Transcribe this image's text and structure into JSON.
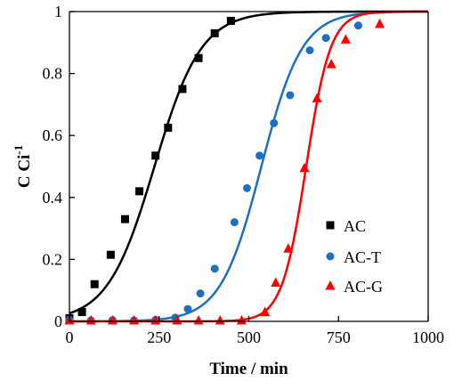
{
  "chart_data": {
    "type": "scatter",
    "xlabel": "Time / min",
    "ylabel": "C Ci",
    "ylabel_superscript": "-1",
    "xlim": [
      0,
      1000
    ],
    "ylim": [
      0,
      1
    ],
    "xticks": [
      0,
      250,
      500,
      750,
      1000
    ],
    "yticks": [
      0,
      0.2,
      0.4,
      0.6,
      0.8,
      1
    ],
    "ytick_labels": [
      "0",
      "0.2",
      "0.4",
      "0.6",
      "0.8",
      "1"
    ],
    "grid": false,
    "legend_position": "right",
    "series": [
      {
        "name": "AC",
        "marker": "square",
        "color": "#000000",
        "points": [
          [
            0,
            0.01
          ],
          [
            35,
            0.03
          ],
          [
            70,
            0.12
          ],
          [
            115,
            0.215
          ],
          [
            155,
            0.33
          ],
          [
            195,
            0.42
          ],
          [
            240,
            0.535
          ],
          [
            275,
            0.625
          ],
          [
            315,
            0.75
          ],
          [
            360,
            0.85
          ],
          [
            405,
            0.93
          ],
          [
            450,
            0.97
          ]
        ],
        "fit": {
          "t50": 237,
          "k": 0.0153
        }
      },
      {
        "name": "AC-T",
        "marker": "circle",
        "color": "#1f6fc0",
        "points": [
          [
            0,
            0.005
          ],
          [
            60,
            0.003
          ],
          [
            120,
            0.004
          ],
          [
            180,
            0.003
          ],
          [
            240,
            0.005
          ],
          [
            295,
            0.012
          ],
          [
            330,
            0.04
          ],
          [
            365,
            0.09
          ],
          [
            405,
            0.17
          ],
          [
            460,
            0.32
          ],
          [
            495,
            0.43
          ],
          [
            530,
            0.535
          ],
          [
            570,
            0.64
          ],
          [
            615,
            0.73
          ],
          [
            670,
            0.875
          ],
          [
            715,
            0.915
          ],
          [
            805,
            0.955
          ]
        ],
        "fit": {
          "t50": 535,
          "k": 0.0176
        }
      },
      {
        "name": "AC-G",
        "marker": "triangle",
        "color": "#ff0000",
        "points": [
          [
            0,
            0.003
          ],
          [
            60,
            0.003
          ],
          [
            120,
            0.003
          ],
          [
            180,
            0.003
          ],
          [
            240,
            0.003
          ],
          [
            300,
            0.003
          ],
          [
            360,
            0.003
          ],
          [
            420,
            0.003
          ],
          [
            480,
            0.003
          ],
          [
            545,
            0.03
          ],
          [
            575,
            0.125
          ],
          [
            610,
            0.235
          ],
          [
            655,
            0.495
          ],
          [
            690,
            0.72
          ],
          [
            730,
            0.83
          ],
          [
            770,
            0.91
          ],
          [
            865,
            0.96
          ]
        ],
        "fit": {
          "t50": 660,
          "k": 0.0295
        }
      }
    ]
  }
}
